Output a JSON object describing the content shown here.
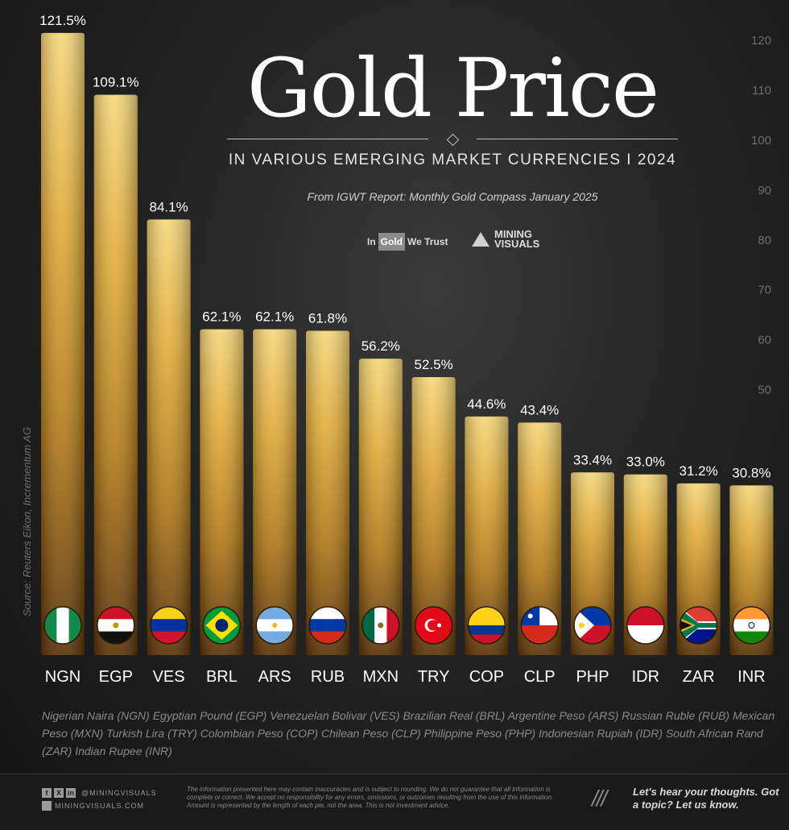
{
  "header": {
    "title": "Gold Price",
    "subtitle": "IN VARIOUS EMERGING MARKET CURRENCIES  I  2024",
    "report": "From IGWT Report: Monthly Gold Compass January 2025"
  },
  "logos": {
    "igwt_in": "In",
    "igwt_gold": "Gold",
    "igwt_trust": "We Trust",
    "mv_line1": "MINING",
    "mv_line2": "VISUALS"
  },
  "source": "Source: Reuters Eikon, Incrementum AG",
  "legend_text": "Nigerian Naira (NGN) Egyptian Pound (EGP) Venezuelan Bolivar (VES) Brazilian Real (BRL) Argentine Peso (ARS) Russian Ruble (RUB) Mexican Peso (MXN) Turkish Lira (TRY) Colombian Peso (COP) Chilean Peso (CLP) Philippine Peso (PHP) Indonesian Rupiah (IDR) South African Rand (ZAR) Indian Rupee (INR)",
  "footer": {
    "handle": "@MININGVISUALS",
    "site": "MININGVISUALS.COM",
    "disclaimer": "The information presented here may contain inaccuracies and is subject to rounding. We do not guarantee that all information is complete or correct. We accept no responsibility for any errors, omissions, or outcomes resulting from the use of this information. Amount is represented by the length of each pie, not the area. This is not investment advice.",
    "slashes": "///",
    "cta": "Let's hear your thoughts. Got a topic? Let us know."
  },
  "colors": {
    "gold_light": "#f2cd6a",
    "gold_mid": "#c9921e",
    "gold_dark": "#5a3208",
    "background": "#232323"
  },
  "chart_data": {
    "type": "bar",
    "title": "Gold Price",
    "categories": [
      "NGN",
      "EGP",
      "VES",
      "BRL",
      "ARS",
      "RUB",
      "MXN",
      "TRY",
      "COP",
      "CLP",
      "PHP",
      "IDR",
      "ZAR",
      "INR"
    ],
    "values": [
      121.5,
      109.1,
      84.1,
      62.1,
      62.1,
      61.8,
      56.2,
      52.5,
      44.6,
      43.4,
      33.4,
      33.0,
      31.2,
      30.8
    ],
    "value_labels": [
      "121.5%",
      "109.1%",
      "84.1%",
      "62.1%",
      "62.1%",
      "61.8%",
      "56.2%",
      "52.5%",
      "44.6%",
      "43.4%",
      "33.4%",
      "33.0%",
      "31.2%",
      "30.8%"
    ],
    "flags": [
      "nigeria-flag-icon",
      "egypt-flag-icon",
      "venezuela-flag-icon",
      "brazil-flag-icon",
      "argentina-flag-icon",
      "russia-flag-icon",
      "mexico-flag-icon",
      "turkey-flag-icon",
      "colombia-flag-icon",
      "chile-flag-icon",
      "philippines-flag-icon",
      "indonesia-flag-icon",
      "south-africa-flag-icon",
      "india-flag-icon"
    ],
    "y_ticks": [
      "50",
      "60",
      "70",
      "80",
      "90",
      "100",
      "110",
      "120"
    ],
    "ylim": [
      0,
      125
    ],
    "grid": false
  }
}
